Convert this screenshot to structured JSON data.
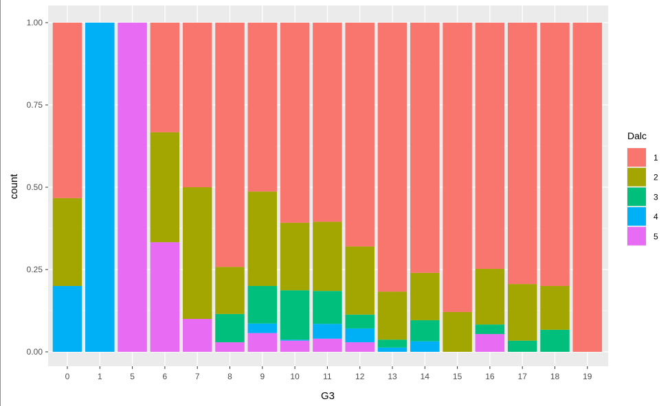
{
  "chart_data": {
    "type": "bar",
    "stacked": "fill",
    "xlabel": "G3",
    "ylabel": "count",
    "ylim": [
      0,
      1
    ],
    "yticks": [
      "0.00",
      "0.25",
      "0.50",
      "0.75",
      "1.00"
    ],
    "categories": [
      "0",
      "1",
      "5",
      "6",
      "7",
      "8",
      "9",
      "10",
      "11",
      "12",
      "13",
      "14",
      "15",
      "16",
      "17",
      "18",
      "19"
    ],
    "legend": {
      "title": "Dalc",
      "position": "right"
    },
    "series": [
      {
        "name": "5",
        "color": "#E76BF3",
        "values": [
          0,
          0,
          1,
          0.333,
          0.1,
          0.029,
          0.057,
          0.034,
          0.04,
          0.029,
          0,
          0,
          0,
          0.054,
          0,
          0,
          0
        ]
      },
      {
        "name": "4",
        "color": "#00B0F6",
        "values": [
          0.2,
          1,
          0,
          0,
          0,
          0,
          0.029,
          0.003,
          0.045,
          0.042,
          0.013,
          0.032,
          0,
          0,
          0,
          0,
          0
        ]
      },
      {
        "name": "3",
        "color": "#00BF7D",
        "values": [
          0,
          0,
          0,
          0,
          0,
          0.086,
          0.114,
          0.15,
          0.1,
          0.042,
          0.024,
          0.064,
          0,
          0.029,
          0.034,
          0.067,
          0
        ]
      },
      {
        "name": "2",
        "color": "#A3A500",
        "values": [
          0.267,
          0,
          0,
          0.334,
          0.4,
          0.143,
          0.287,
          0.205,
          0.21,
          0.207,
          0.146,
          0.144,
          0.121,
          0.169,
          0.172,
          0.133,
          0
        ]
      },
      {
        "name": "1",
        "color": "#F8766D",
        "values": [
          0.533,
          0,
          0,
          0.333,
          0.5,
          0.742,
          0.513,
          0.608,
          0.605,
          0.68,
          0.817,
          0.76,
          0.879,
          0.748,
          0.794,
          0.8,
          1
        ]
      }
    ]
  }
}
